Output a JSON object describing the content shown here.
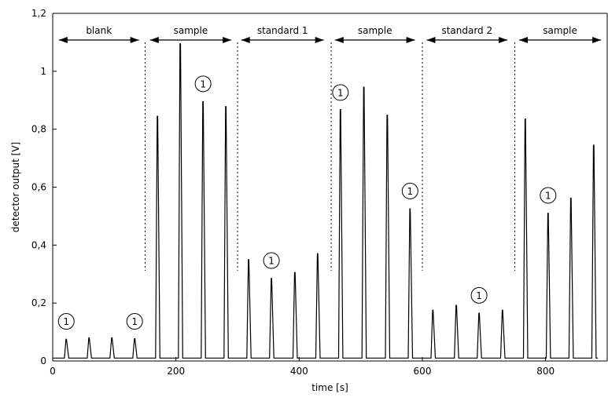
{
  "chart_data": {
    "type": "line",
    "title": "",
    "xlabel": "time [s]",
    "ylabel": "detector output [V]",
    "xlim": [
      0,
      900
    ],
    "ylim": [
      0,
      1.2
    ],
    "x_ticks": [
      {
        "value": 0,
        "label": "0"
      },
      {
        "value": 200,
        "label": "200"
      },
      {
        "value": 400,
        "label": "400"
      },
      {
        "value": 600,
        "label": "600"
      },
      {
        "value": 800,
        "label": "800"
      }
    ],
    "y_ticks": [
      {
        "value": 0,
        "label": "0"
      },
      {
        "value": 0.2,
        "label": "0,2"
      },
      {
        "value": 0.4,
        "label": "0,4"
      },
      {
        "value": 0.6,
        "label": "0,6"
      },
      {
        "value": 0.8,
        "label": "0,8"
      },
      {
        "value": 1.0,
        "label": "1"
      },
      {
        "value": 1.2,
        "label": "1,2"
      }
    ],
    "grid": false,
    "baseline": 0.01,
    "line_color": "#000000",
    "peaks": [
      {
        "t": 22,
        "v": 0.075
      },
      {
        "t": 59,
        "v": 0.08
      },
      {
        "t": 96,
        "v": 0.08
      },
      {
        "t": 133,
        "v": 0.077
      },
      {
        "t": 170,
        "v": 0.845
      },
      {
        "t": 207,
        "v": 1.095
      },
      {
        "t": 244,
        "v": 0.895
      },
      {
        "t": 281,
        "v": 0.878
      },
      {
        "t": 318,
        "v": 0.35
      },
      {
        "t": 355,
        "v": 0.285
      },
      {
        "t": 393,
        "v": 0.305
      },
      {
        "t": 430,
        "v": 0.37
      },
      {
        "t": 467,
        "v": 0.868
      },
      {
        "t": 505,
        "v": 0.945
      },
      {
        "t": 543,
        "v": 0.848
      },
      {
        "t": 580,
        "v": 0.525
      },
      {
        "t": 617,
        "v": 0.175
      },
      {
        "t": 655,
        "v": 0.192
      },
      {
        "t": 692,
        "v": 0.165
      },
      {
        "t": 730,
        "v": 0.175
      },
      {
        "t": 767,
        "v": 0.835
      },
      {
        "t": 804,
        "v": 0.51
      },
      {
        "t": 841,
        "v": 0.562
      },
      {
        "t": 878,
        "v": 0.745
      }
    ],
    "dividers": [
      150,
      300,
      452,
      600,
      750
    ],
    "sections": [
      {
        "label": "blank",
        "x_start": 10,
        "x_end": 140
      },
      {
        "label": "sample",
        "x_start": 158,
        "x_end": 290
      },
      {
        "label": "standard 1",
        "x_start": 306,
        "x_end": 440
      },
      {
        "label": "sample",
        "x_start": 458,
        "x_end": 588
      },
      {
        "label": "standard 2",
        "x_start": 607,
        "x_end": 738
      },
      {
        "label": "sample",
        "x_start": 757,
        "x_end": 890
      }
    ],
    "markers": [
      {
        "label": "1",
        "t": 22,
        "v": 0.115
      },
      {
        "label": "1",
        "t": 133,
        "v": 0.115
      },
      {
        "label": "1",
        "t": 244,
        "v": 0.935
      },
      {
        "label": "1",
        "t": 355,
        "v": 0.325
      },
      {
        "label": "1",
        "t": 467,
        "v": 0.905
      },
      {
        "label": "1",
        "t": 580,
        "v": 0.565
      },
      {
        "label": "1",
        "t": 692,
        "v": 0.205
      },
      {
        "label": "1",
        "t": 804,
        "v": 0.55
      }
    ]
  }
}
